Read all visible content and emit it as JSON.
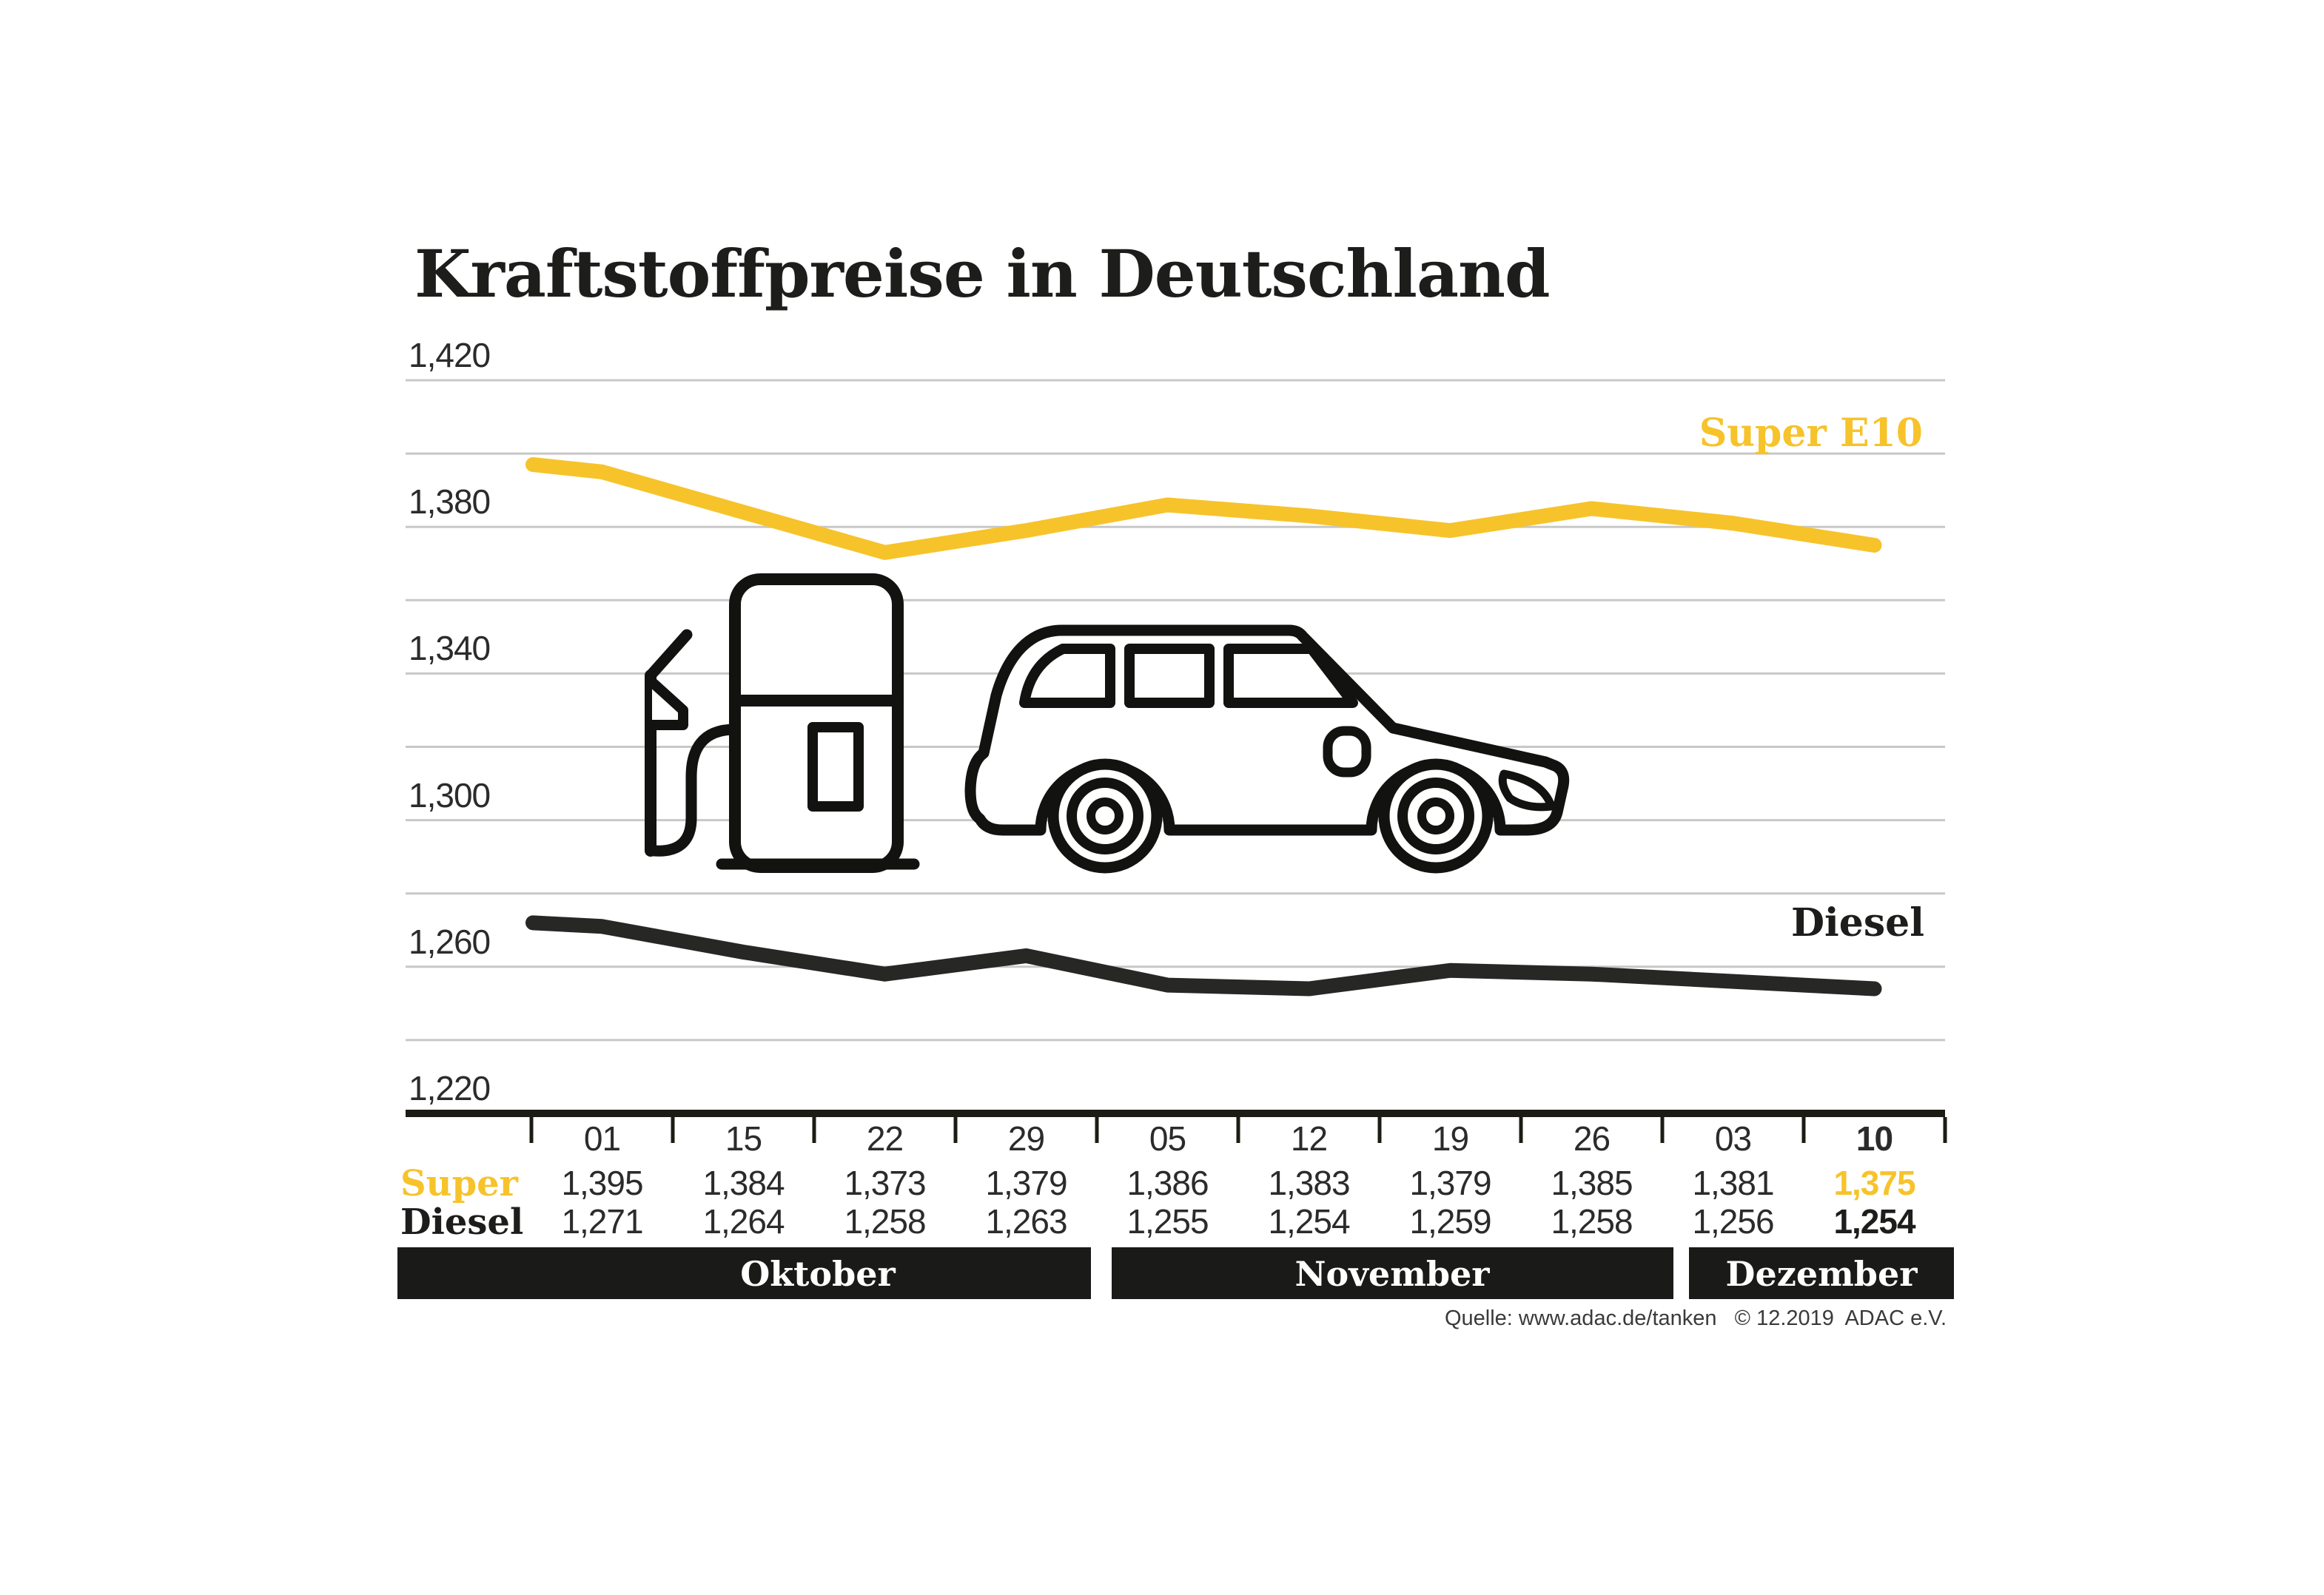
{
  "title": "Kraftstoffpreise in Deutschland",
  "source_note": "Quelle: www.adac.de/tanken   © 12.2019  ADAC e.V.",
  "colors": {
    "super_yellow": "#F7C32B",
    "diesel_black": "#272725",
    "grid_gray": "#c8c8c8",
    "axis_dark": "#1d1c14",
    "text_dark": "#1d1d1b",
    "value_text": "#2b2b2b",
    "month_bar_bg": "#1a1a18",
    "month_bar_text": "#ffffff"
  },
  "chart_data": {
    "type": "line",
    "title": "Kraftstoffpreise in Deutschland",
    "x_tick_labels": [
      "01",
      "15",
      "22",
      "29",
      "05",
      "12",
      "19",
      "26",
      "03",
      "10"
    ],
    "highlight_last_column": true,
    "month_groups": [
      {
        "label": "Oktober",
        "columns": [
          "01",
          "15",
          "22",
          "29"
        ]
      },
      {
        "label": "November",
        "columns": [
          "05",
          "12",
          "19",
          "26"
        ]
      },
      {
        "label": "Dezember",
        "columns": [
          "03",
          "10"
        ]
      }
    ],
    "ylim": [
      1220,
      1420
    ],
    "y_grid_step": 20,
    "y_labeled_ticks": [
      1420,
      1380,
      1340,
      1300,
      1260,
      1220
    ],
    "y_tick_label_format": "comma-decimal (e.g. 1,420)",
    "grid": true,
    "legend_position": "right-of-lines",
    "series": [
      {
        "name": "Super E10",
        "short_label": "Super",
        "color": "#F7C32B",
        "lead_in_value": 1397,
        "values": [
          1395,
          1384,
          1373,
          1379,
          1386,
          1383,
          1379,
          1385,
          1381,
          1375
        ]
      },
      {
        "name": "Diesel",
        "short_label": "Diesel",
        "color": "#272725",
        "lead_in_value": 1272,
        "values": [
          1271,
          1264,
          1258,
          1263,
          1255,
          1254,
          1259,
          1258,
          1256,
          1254
        ]
      }
    ]
  }
}
